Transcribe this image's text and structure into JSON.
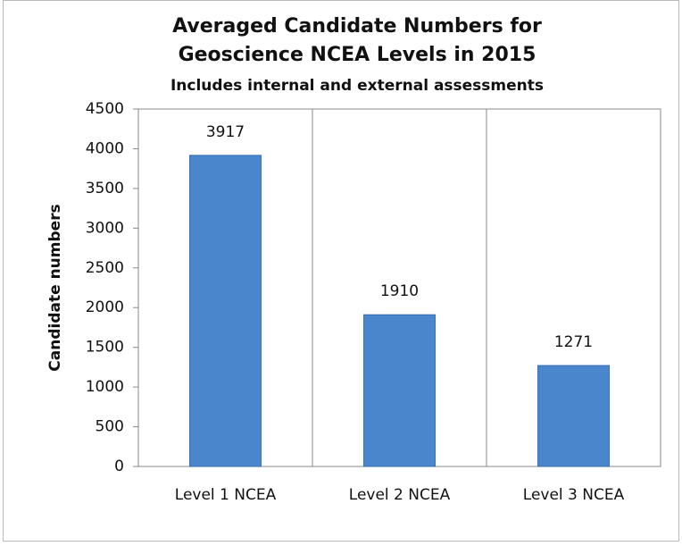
{
  "chart_data": {
    "type": "bar",
    "title": "Averaged Candidate Numbers for Geoscience NCEA Levels in 2015",
    "subtitle": "Includes internal and external assessments",
    "y_label": "Candidate numbers",
    "categories": [
      "Level 1 NCEA",
      "Level 2 NCEA",
      "Level 3 NCEA"
    ],
    "values": [
      3917,
      1910,
      1271
    ],
    "color": "#4a86cc",
    "ylim": [
      0,
      4500
    ],
    "yticks": [
      0,
      500,
      1000,
      1500,
      2000,
      2500,
      3000,
      3500,
      4000,
      4500
    ],
    "grid": false
  }
}
